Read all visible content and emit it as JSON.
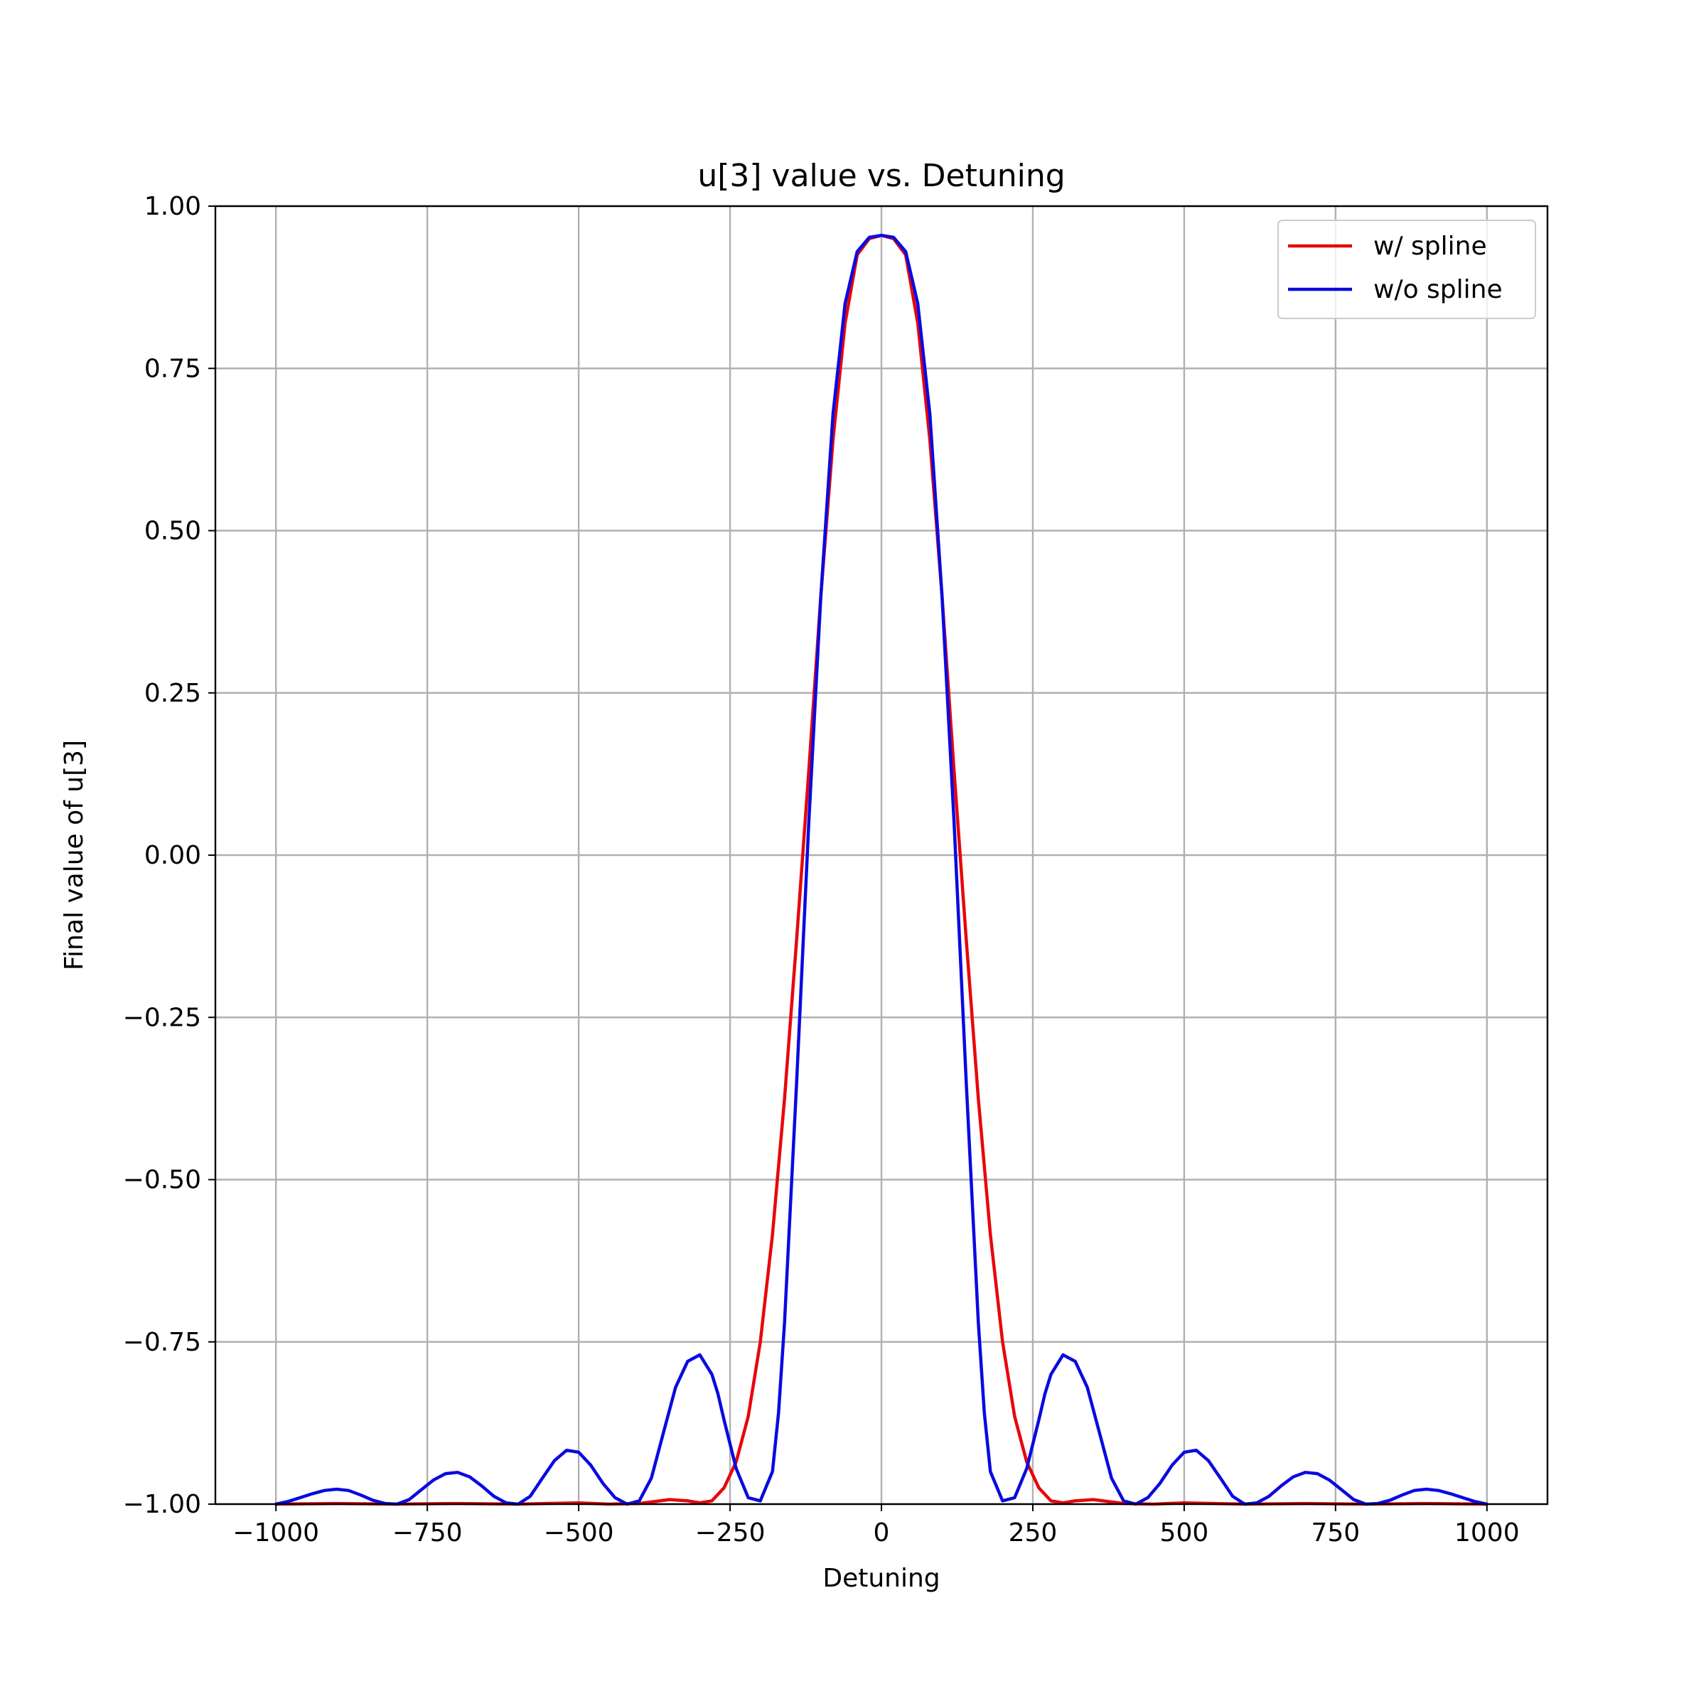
{
  "chart_data": {
    "type": "line",
    "title": "u[3] value vs. Detuning",
    "xlabel": "Detuning",
    "ylabel": "Final value of u[3]",
    "xlim": [
      -1100,
      1100
    ],
    "ylim": [
      -1.0,
      1.0
    ],
    "x_ticks": [
      -1000,
      -750,
      -500,
      -250,
      0,
      250,
      500,
      750,
      1000
    ],
    "x_tick_labels": [
      "−1000",
      "−750",
      "−500",
      "−250",
      "0",
      "250",
      "500",
      "750",
      "1000"
    ],
    "y_ticks": [
      -1.0,
      -0.75,
      -0.5,
      -0.25,
      0.0,
      0.25,
      0.5,
      0.75,
      1.0
    ],
    "y_tick_labels": [
      "−1.00",
      "−0.75",
      "−0.50",
      "−0.25",
      "0.00",
      "0.25",
      "0.50",
      "0.75",
      "1.00"
    ],
    "grid": true,
    "legend_position": "top-right",
    "series": [
      {
        "name": "w/ spline",
        "color": "#e8060b",
        "x": [
          -1000,
          -900,
          -800,
          -700,
          -600,
          -500,
          -450,
          -400,
          -350,
          -320,
          -300,
          -280,
          -260,
          -240,
          -220,
          -200,
          -180,
          -160,
          -140,
          -120,
          -100,
          -80,
          -60,
          -40,
          -20,
          0,
          20,
          40,
          60,
          80,
          100,
          120,
          140,
          160,
          180,
          200,
          220,
          240,
          260,
          280,
          300,
          320,
          350,
          400,
          450,
          500,
          600,
          700,
          800,
          900,
          1000
        ],
        "y": [
          -1.0,
          -0.999,
          -1.0,
          -0.999,
          -1.0,
          -0.998,
          -1.0,
          -0.999,
          -0.993,
          -0.995,
          -0.998,
          -0.995,
          -0.975,
          -0.935,
          -0.865,
          -0.75,
          -0.585,
          -0.375,
          -0.13,
          0.13,
          0.4,
          0.64,
          0.82,
          0.925,
          0.95,
          0.955,
          0.95,
          0.925,
          0.82,
          0.64,
          0.4,
          0.13,
          -0.13,
          -0.375,
          -0.585,
          -0.75,
          -0.865,
          -0.935,
          -0.975,
          -0.995,
          -0.998,
          -0.995,
          -0.993,
          -0.999,
          -1.0,
          -0.998,
          -1.0,
          -0.999,
          -1.0,
          -0.999,
          -1.0
        ]
      },
      {
        "name": "w/o spline",
        "color": "#0a0ae0",
        "x": [
          -1000,
          -980,
          -960,
          -940,
          -920,
          -900,
          -880,
          -860,
          -840,
          -820,
          -800,
          -780,
          -760,
          -740,
          -720,
          -700,
          -680,
          -660,
          -640,
          -620,
          -600,
          -580,
          -560,
          -540,
          -520,
          -500,
          -480,
          -460,
          -440,
          -420,
          -400,
          -380,
          -360,
          -340,
          -320,
          -300,
          -280,
          -270,
          -260,
          -240,
          -220,
          -200,
          -180,
          -170,
          -160,
          -140,
          -120,
          -100,
          -80,
          -60,
          -40,
          -20,
          0,
          20,
          40,
          60,
          80,
          100,
          120,
          140,
          160,
          170,
          180,
          200,
          220,
          240,
          260,
          270,
          280,
          300,
          320,
          340,
          360,
          380,
          400,
          420,
          440,
          460,
          480,
          500,
          520,
          540,
          560,
          580,
          600,
          620,
          640,
          660,
          680,
          700,
          720,
          740,
          760,
          780,
          800,
          820,
          840,
          860,
          880,
          900,
          920,
          940,
          960,
          980,
          1000
        ],
        "y": [
          -1.0,
          -0.996,
          -0.99,
          -0.984,
          -0.979,
          -0.977,
          -0.979,
          -0.986,
          -0.994,
          -0.999,
          -1.0,
          -0.993,
          -0.978,
          -0.963,
          -0.953,
          -0.951,
          -0.958,
          -0.972,
          -0.988,
          -0.998,
          -1.0,
          -0.988,
          -0.96,
          -0.933,
          -0.917,
          -0.92,
          -0.94,
          -0.968,
          -0.99,
          -1.0,
          -0.995,
          -0.96,
          -0.89,
          -0.82,
          -0.78,
          -0.77,
          -0.8,
          -0.83,
          -0.87,
          -0.945,
          -0.99,
          -0.995,
          -0.95,
          -0.86,
          -0.72,
          -0.35,
          0.05,
          0.4,
          0.68,
          0.85,
          0.93,
          0.952,
          0.955,
          0.952,
          0.93,
          0.85,
          0.68,
          0.4,
          0.05,
          -0.35,
          -0.72,
          -0.86,
          -0.95,
          -0.995,
          -0.99,
          -0.945,
          -0.87,
          -0.83,
          -0.8,
          -0.77,
          -0.78,
          -0.82,
          -0.89,
          -0.96,
          -0.995,
          -1.0,
          -0.99,
          -0.968,
          -0.94,
          -0.92,
          -0.917,
          -0.933,
          -0.96,
          -0.988,
          -1.0,
          -0.998,
          -0.988,
          -0.972,
          -0.958,
          -0.951,
          -0.953,
          -0.963,
          -0.978,
          -0.993,
          -1.0,
          -0.999,
          -0.994,
          -0.986,
          -0.979,
          -0.977,
          -0.979,
          -0.984,
          -0.99,
          -0.996,
          -1.0
        ]
      }
    ]
  }
}
